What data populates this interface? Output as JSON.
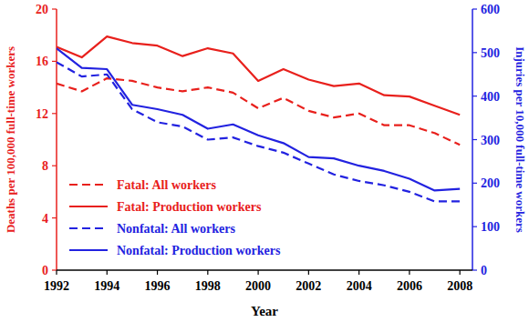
{
  "chart_data": {
    "type": "line",
    "x_label": "Year",
    "y_label": "Deaths per 100,000 full-time workers",
    "y2_label": "Injuries per 10,000 full-time workers",
    "x": [
      1992,
      1993,
      1994,
      1995,
      1996,
      1997,
      1998,
      1999,
      2000,
      2001,
      2002,
      2003,
      2004,
      2005,
      2006,
      2007,
      2008
    ],
    "xlim": [
      1992,
      2008.5
    ],
    "xticks": [
      1992,
      1994,
      1996,
      1998,
      2000,
      2002,
      2004,
      2006,
      2008
    ],
    "ylim": [
      0,
      20
    ],
    "yticks": [
      0,
      4,
      8,
      12,
      16,
      20
    ],
    "y2lim": [
      0,
      600
    ],
    "y2ticks": [
      0,
      100,
      200,
      300,
      400,
      500,
      600
    ],
    "legend": "lower left",
    "series": [
      {
        "name": "Fatal: All workers",
        "color": "#e8201c",
        "line_style": "dashed",
        "values": [
          14.3,
          13.7,
          14.7,
          14.5,
          14.0,
          13.7,
          14.0,
          13.6,
          12.4,
          13.2,
          12.2,
          11.7,
          12.0,
          11.1,
          11.1,
          10.5,
          9.6
        ]
      },
      {
        "name": "Fatal: Production workers",
        "color": "#e8201c",
        "line_style": "solid",
        "values": [
          17.1,
          16.3,
          17.9,
          17.4,
          17.2,
          16.4,
          17.0,
          16.6,
          14.5,
          15.4,
          14.6,
          14.1,
          14.3,
          13.4,
          13.3,
          12.6,
          11.9
        ]
      },
      {
        "name": "Nonfatal: All workers",
        "color": "#2222e0",
        "line_style": "dashed",
        "axis": "y2",
        "values": [
          478,
          445,
          450,
          370,
          340,
          330,
          300,
          305,
          285,
          270,
          245,
          220,
          205,
          195,
          180,
          158,
          158
        ]
      },
      {
        "name": "Nonfatal: Production workers",
        "color": "#2222e0",
        "line_style": "solid",
        "axis": "y2",
        "values": [
          510,
          465,
          462,
          380,
          370,
          357,
          325,
          335,
          310,
          292,
          260,
          257,
          240,
          228,
          210,
          183,
          187
        ]
      }
    ]
  }
}
